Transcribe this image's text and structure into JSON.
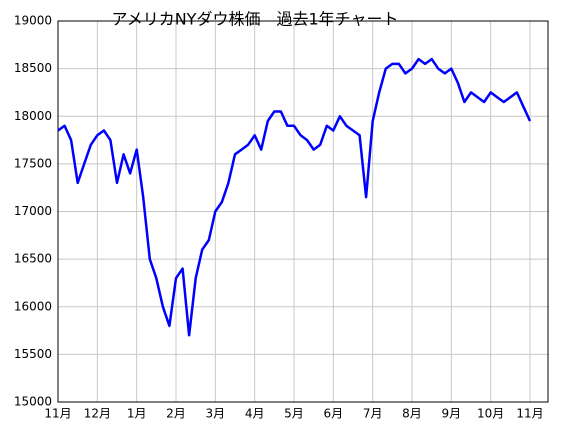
{
  "chart_data": {
    "type": "line",
    "title": "アメリカNYダウ株価　過去1年チャート",
    "categories": [
      "11月",
      null,
      null,
      null,
      null,
      null,
      "12月",
      null,
      null,
      null,
      null,
      null,
      "1月",
      null,
      null,
      null,
      null,
      null,
      "2月",
      null,
      null,
      null,
      null,
      null,
      "3月",
      null,
      null,
      null,
      null,
      null,
      "4月",
      null,
      null,
      null,
      null,
      null,
      "5月",
      null,
      null,
      null,
      null,
      null,
      "6月",
      null,
      null,
      null,
      null,
      null,
      "7月",
      null,
      null,
      null,
      null,
      null,
      "8月",
      null,
      null,
      null,
      null,
      null,
      "9月",
      null,
      null,
      null,
      null,
      null,
      "10月",
      null,
      null,
      null,
      null,
      null,
      "11月"
    ],
    "series": [
      {
        "name": "NYダウ",
        "color": "#0000ff",
        "values": [
          17850,
          17900,
          17750,
          17300,
          17500,
          17700,
          17800,
          17850,
          17750,
          17300,
          17600,
          17400,
          17650,
          17150,
          16500,
          16300,
          16000,
          15800,
          16300,
          16400,
          15700,
          16300,
          16600,
          16700,
          17000,
          17100,
          17300,
          17600,
          17650,
          17700,
          17800,
          17650,
          17950,
          18050,
          18050,
          17900,
          17900,
          17800,
          17750,
          17650,
          17700,
          17900,
          17850,
          18000,
          17900,
          17850,
          17800,
          17150,
          17950,
          18250,
          18500,
          18550,
          18550,
          18450,
          18500,
          18600,
          18550,
          18600,
          18500,
          18450,
          18500,
          18350,
          18150,
          18250,
          18200,
          18150,
          18250,
          18200,
          18150,
          18200,
          18250,
          18100,
          17950
        ]
      }
    ],
    "ylim": [
      15000,
      19000
    ],
    "yticks": [
      15000,
      15500,
      16000,
      16500,
      17000,
      17500,
      18000,
      18500,
      19000
    ],
    "grid": true
  }
}
